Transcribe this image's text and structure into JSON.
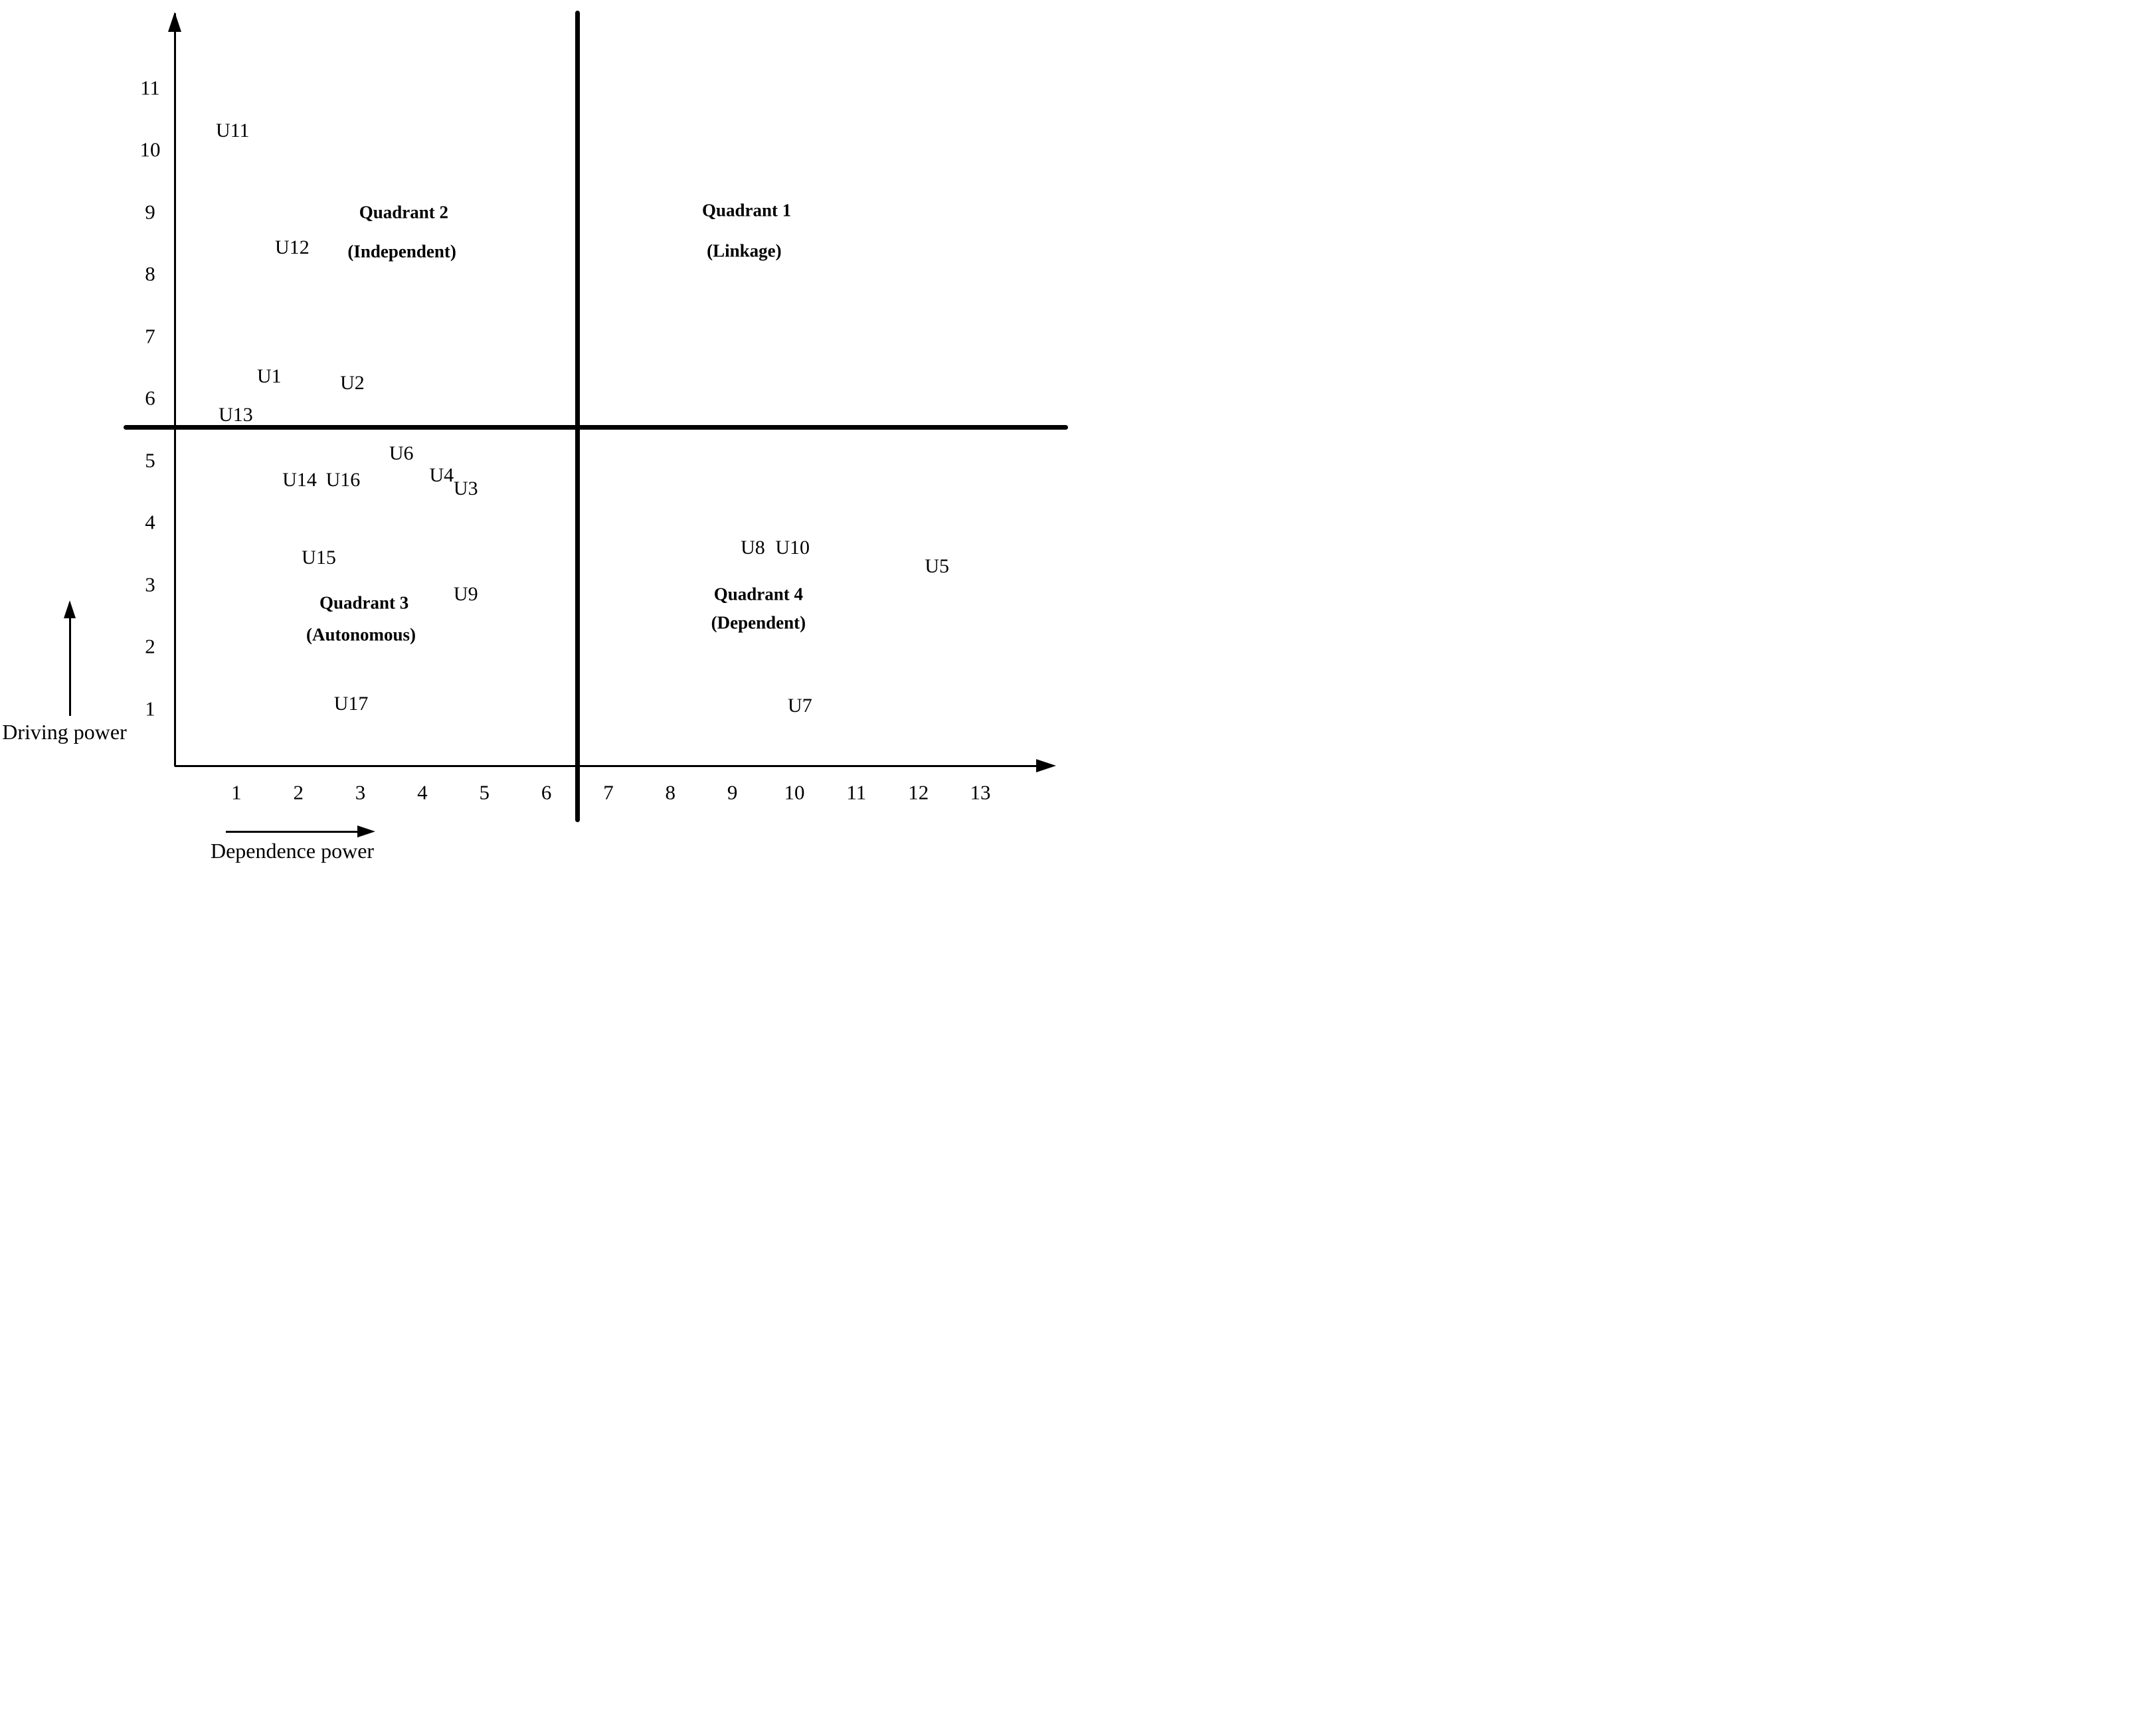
{
  "figure": {
    "background": "#ffffff",
    "ink_color": "#000000"
  },
  "chart_data": {
    "type": "scatter",
    "title": "",
    "xlabel": "Dependence power",
    "ylabel": "Driving power",
    "x_ticks": [
      1,
      2,
      3,
      4,
      5,
      6,
      7,
      8,
      9,
      10,
      11,
      12,
      13
    ],
    "y_ticks": [
      1,
      2,
      3,
      4,
      5,
      6,
      7,
      8,
      9,
      10,
      11
    ],
    "xlim": [
      0,
      14.2
    ],
    "ylim": [
      0,
      12.2
    ],
    "grid": false,
    "legend": null,
    "quadrant_divider_x": 6.5,
    "quadrant_divider_y": 5.5,
    "points": [
      {
        "label": "U11",
        "x": 0.94,
        "y": 10.3
      },
      {
        "label": "U12",
        "x": 1.9,
        "y": 8.42
      },
      {
        "label": "U1",
        "x": 1.53,
        "y": 6.34
      },
      {
        "label": "U2",
        "x": 2.87,
        "y": 6.23
      },
      {
        "label": "U13",
        "x": 0.99,
        "y": 5.72
      },
      {
        "label": "U6",
        "x": 3.66,
        "y": 5.1
      },
      {
        "label": "U14",
        "x": 2.02,
        "y": 4.67
      },
      {
        "label": "U16",
        "x": 2.72,
        "y": 4.67
      },
      {
        "label": "U4",
        "x": 4.31,
        "y": 4.75
      },
      {
        "label": "U3",
        "x": 4.7,
        "y": 4.54
      },
      {
        "label": "U15",
        "x": 2.33,
        "y": 3.42
      },
      {
        "label": "U9",
        "x": 4.7,
        "y": 2.83
      },
      {
        "label": "U17",
        "x": 2.85,
        "y": 1.07
      },
      {
        "label": "U8",
        "x": 9.33,
        "y": 3.58
      },
      {
        "label": "U10",
        "x": 9.97,
        "y": 3.58
      },
      {
        "label": "U5",
        "x": 12.3,
        "y": 3.28
      },
      {
        "label": "U7",
        "x": 10.09,
        "y": 1.04
      }
    ],
    "quadrant_labels": [
      {
        "name": "quadrant-1",
        "lines": [
          {
            "text": "Quadrant 1",
            "x": 9.23,
            "y": 9.02
          },
          {
            "text": "(Linkage)",
            "x": 9.19,
            "y": 8.36
          }
        ]
      },
      {
        "name": "quadrant-2",
        "lines": [
          {
            "text": "Quadrant 2",
            "x": 3.7,
            "y": 8.98
          },
          {
            "text": "(Independent)",
            "x": 3.67,
            "y": 8.35
          }
        ]
      },
      {
        "name": "quadrant-3",
        "lines": [
          {
            "text": "Quadrant 3",
            "x": 3.06,
            "y": 2.7
          },
          {
            "text": "(Autonomous)",
            "x": 3.01,
            "y": 2.18
          }
        ]
      },
      {
        "name": "quadrant-4",
        "lines": [
          {
            "text": "Quadrant 4",
            "x": 9.42,
            "y": 2.83
          },
          {
            "text": "(Dependent)",
            "x": 9.42,
            "y": 2.37
          }
        ]
      }
    ]
  }
}
